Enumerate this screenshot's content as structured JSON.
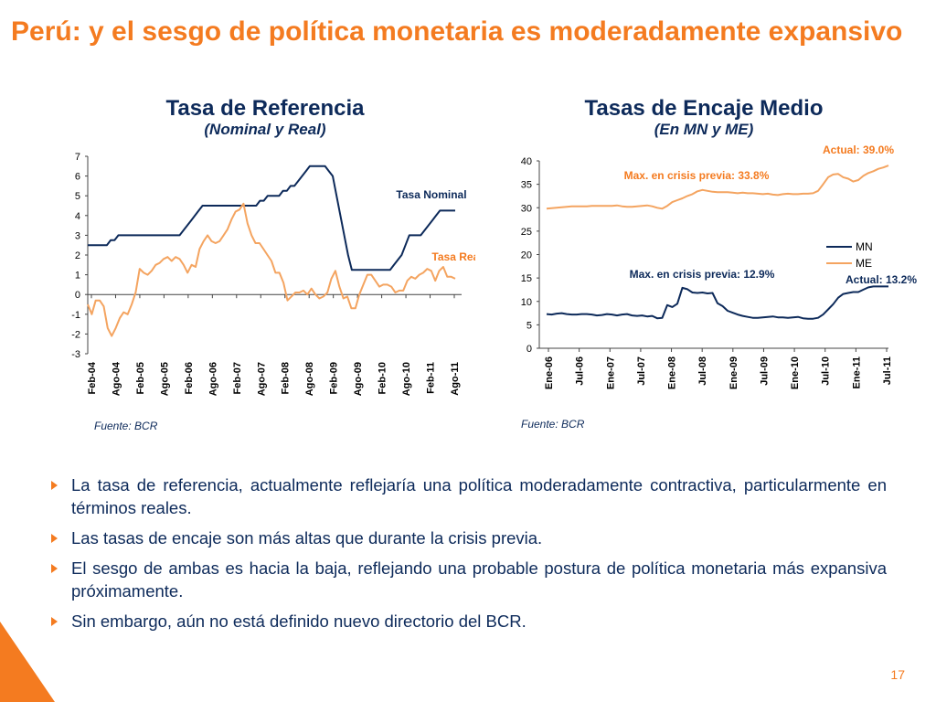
{
  "slide": {
    "title": "Perú: y el sesgo de política monetaria es moderadamente expansivo",
    "page_number": "17",
    "colors": {
      "accent": "#f47b20",
      "navy": "#0d2a5a",
      "orange_series": "#f4a460"
    }
  },
  "chart_data": [
    {
      "type": "line",
      "title": "Tasa de Referencia",
      "subtitle": "(Nominal y Real)",
      "source": "Fuente: BCR",
      "ylim": [
        -3,
        7
      ],
      "yticks": [
        "7",
        "6",
        "5",
        "4",
        "3",
        "2",
        "1",
        "0",
        "-1",
        "-2",
        "-3"
      ],
      "xticks": [
        "Feb-04",
        "Ago-04",
        "Feb-05",
        "Ago-05",
        "Feb-06",
        "Ago-06",
        "Feb-07",
        "Ago-07",
        "Feb-08",
        "Ago-08",
        "Feb-09",
        "Ago-09",
        "Feb-10",
        "Ago-10",
        "Feb-11",
        "Ago-11"
      ],
      "grid": false,
      "series": [
        {
          "name": "Tasa Nominal",
          "color": "#0d2a5a",
          "x_start": "Feb-04",
          "values": [
            2.5,
            2.5,
            2.5,
            2.5,
            2.5,
            2.5,
            2.75,
            2.75,
            3,
            3,
            3,
            3,
            3,
            3,
            3,
            3,
            3,
            3,
            3,
            3,
            3,
            3,
            3,
            3,
            3,
            3.25,
            3.5,
            3.75,
            4,
            4.25,
            4.5,
            4.5,
            4.5,
            4.5,
            4.5,
            4.5,
            4.5,
            4.5,
            4.5,
            4.5,
            4.5,
            4.5,
            4.5,
            4.5,
            4.5,
            4.75,
            4.75,
            5,
            5,
            5,
            5,
            5.25,
            5.25,
            5.5,
            5.5,
            5.75,
            6,
            6.25,
            6.5,
            6.5,
            6.5,
            6.5,
            6.5,
            6.25,
            6,
            5,
            4,
            3,
            2,
            1.25,
            1.25,
            1.25,
            1.25,
            1.25,
            1.25,
            1.25,
            1.25,
            1.25,
            1.25,
            1.25,
            1.5,
            1.75,
            2,
            2.5,
            3,
            3,
            3,
            3,
            3.25,
            3.5,
            3.75,
            4,
            4.25,
            4.25,
            4.25,
            4.25,
            4.25
          ]
        },
        {
          "name": "Tasa Real",
          "color": "#f4a460",
          "x_start": "Feb-04",
          "values": [
            -0.5,
            -1,
            -0.3,
            -0.3,
            -0.6,
            -1.7,
            -2.1,
            -1.7,
            -1.2,
            -0.9,
            -1,
            -0.5,
            0.1,
            1.3,
            1.1,
            1,
            1.2,
            1.5,
            1.6,
            1.8,
            1.9,
            1.7,
            1.9,
            1.8,
            1.5,
            1.1,
            1.5,
            1.4,
            2.3,
            2.7,
            3,
            2.7,
            2.6,
            2.7,
            3,
            3.3,
            3.8,
            4.2,
            4.3,
            4.6,
            3.6,
            3,
            2.6,
            2.6,
            2.3,
            2,
            1.7,
            1.1,
            1.1,
            0.6,
            -0.3,
            -0.1,
            0.1,
            0.1,
            0.2,
            0,
            0.3,
            0,
            -0.2,
            -0.1,
            0.1,
            0.8,
            1.2,
            0.4,
            -0.2,
            -0.1,
            -0.7,
            -0.7,
            0,
            0.5,
            1,
            1,
            0.7,
            0.4,
            0.5,
            0.5,
            0.4,
            0.1,
            0.2,
            0.2,
            0.7,
            0.9,
            0.8,
            1,
            1.1,
            1.3,
            1.2,
            0.7,
            1.2,
            1.4,
            0.9,
            0.9,
            0.8
          ]
        }
      ]
    },
    {
      "type": "line",
      "title": "Tasas de Encaje Medio",
      "subtitle": "(En MN y ME)",
      "source": "Fuente: BCR",
      "ylim": [
        0,
        40
      ],
      "yticks": [
        "40",
        "35",
        "30",
        "25",
        "20",
        "15",
        "10",
        "5",
        "0"
      ],
      "xticks": [
        "Ene-06",
        "Jul-06",
        "Ene-07",
        "Jul-07",
        "Ene-08",
        "Jul-08",
        "Ene-09",
        "Jul-09",
        "Ene-10",
        "Jul-10",
        "Ene-11",
        "Jul-11"
      ],
      "grid": false,
      "legend": "right",
      "annotations": [
        "Actual: 39.0%",
        "Max. en crisis previa: 33.8%",
        "Max. en crisis previa: 12.9%",
        "Actual: 13.2%"
      ],
      "series": [
        {
          "name": "MN",
          "color": "#0d2a5a",
          "x_start": "Ene-06",
          "values": [
            7.3,
            7.2,
            7.4,
            7.5,
            7.3,
            7.2,
            7.2,
            7.3,
            7.3,
            7.2,
            7,
            7.1,
            7.3,
            7.2,
            7,
            7.2,
            7.3,
            7,
            6.9,
            7,
            6.8,
            6.9,
            6.4,
            6.5,
            9.2,
            8.8,
            9.5,
            12.9,
            12.6,
            11.9,
            11.8,
            11.9,
            11.7,
            11.8,
            9.6,
            9,
            8,
            7.6,
            7.2,
            6.9,
            6.7,
            6.5,
            6.5,
            6.6,
            6.7,
            6.8,
            6.6,
            6.6,
            6.5,
            6.6,
            6.7,
            6.4,
            6.3,
            6.3,
            6.5,
            7.2,
            8.3,
            9.4,
            10.8,
            11.6,
            11.8,
            12,
            12,
            12.5,
            13,
            13.2,
            13.2,
            13.2,
            13.2
          ]
        },
        {
          "name": "ME",
          "color": "#f4a460",
          "x_start": "Ene-06",
          "values": [
            29.8,
            29.9,
            30,
            30.1,
            30.2,
            30.3,
            30.3,
            30.3,
            30.3,
            30.4,
            30.4,
            30.4,
            30.4,
            30.4,
            30.5,
            30.3,
            30.2,
            30.2,
            30.3,
            30.4,
            30.5,
            30.3,
            30,
            29.8,
            30.4,
            31.2,
            31.6,
            32,
            32.5,
            32.9,
            33.5,
            33.8,
            33.6,
            33.4,
            33.3,
            33.3,
            33.3,
            33.2,
            33.1,
            33.2,
            33.1,
            33.1,
            33,
            32.9,
            33,
            32.8,
            32.7,
            32.9,
            33,
            32.9,
            32.9,
            33,
            33,
            33.1,
            33.6,
            35,
            36.5,
            37.1,
            37.2,
            36.5,
            36.2,
            35.6,
            35.9,
            36.8,
            37.4,
            37.8,
            38.3,
            38.6,
            39
          ]
        }
      ]
    }
  ],
  "bullets": [
    "La tasa de referencia, actualmente reflejaría una política moderadamente contractiva, particularmente en términos reales.",
    "Las tasas de encaje son más altas que durante la crisis previa.",
    "El sesgo de ambas es hacia la baja, reflejando una probable postura de política monetaria más expansiva próximamente.",
    "Sin embargo, aún no está definido nuevo directorio del BCR."
  ]
}
